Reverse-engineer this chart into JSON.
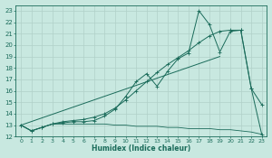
{
  "background_color": "#c8e8e0",
  "grid_color": "#b0d0c8",
  "line_color": "#1a6b5a",
  "xlabel": "Humidex (Indice chaleur)",
  "xlim": [
    -0.5,
    23.5
  ],
  "ylim": [
    12,
    23.5
  ],
  "yticks": [
    12,
    13,
    14,
    15,
    16,
    17,
    18,
    19,
    20,
    21,
    22,
    23
  ],
  "xticks": [
    0,
    1,
    2,
    3,
    4,
    5,
    6,
    7,
    8,
    9,
    10,
    11,
    12,
    13,
    14,
    15,
    16,
    17,
    18,
    19,
    20,
    21,
    22,
    23
  ],
  "line_peak_x": [
    0,
    1,
    2,
    3,
    4,
    5,
    6,
    7,
    8,
    9,
    10,
    11,
    12,
    13,
    14,
    15,
    16,
    17,
    18,
    19,
    20,
    21,
    22,
    23
  ],
  "line_peak_y": [
    13.0,
    12.5,
    12.8,
    13.1,
    13.2,
    13.3,
    13.3,
    13.4,
    13.8,
    14.4,
    15.5,
    16.8,
    17.5,
    16.4,
    17.7,
    18.8,
    19.3,
    23.0,
    21.8,
    19.4,
    21.2,
    21.3,
    16.2,
    14.8
  ],
  "line_steady_x": [
    0,
    1,
    2,
    3,
    4,
    5,
    6,
    7,
    8,
    9,
    10,
    11,
    12,
    13,
    14,
    15,
    16,
    17,
    18,
    19,
    20,
    21,
    22,
    23
  ],
  "line_steady_y": [
    13.0,
    12.5,
    12.8,
    13.1,
    13.3,
    13.4,
    13.5,
    13.7,
    14.0,
    14.5,
    15.2,
    16.0,
    16.8,
    17.6,
    18.3,
    18.9,
    19.5,
    20.2,
    20.8,
    21.2,
    21.3,
    21.3,
    16.2,
    12.2
  ],
  "line_flat_x": [
    0,
    1,
    2,
    3,
    4,
    5,
    6,
    7,
    8,
    9,
    10,
    11,
    12,
    13,
    14,
    15,
    16,
    17,
    18,
    19,
    20,
    21,
    22,
    23
  ],
  "line_flat_y": [
    13.0,
    12.5,
    12.8,
    13.1,
    13.1,
    13.1,
    13.1,
    13.1,
    13.1,
    13.0,
    13.0,
    12.9,
    12.9,
    12.9,
    12.8,
    12.8,
    12.7,
    12.7,
    12.7,
    12.6,
    12.6,
    12.5,
    12.4,
    12.2
  ]
}
